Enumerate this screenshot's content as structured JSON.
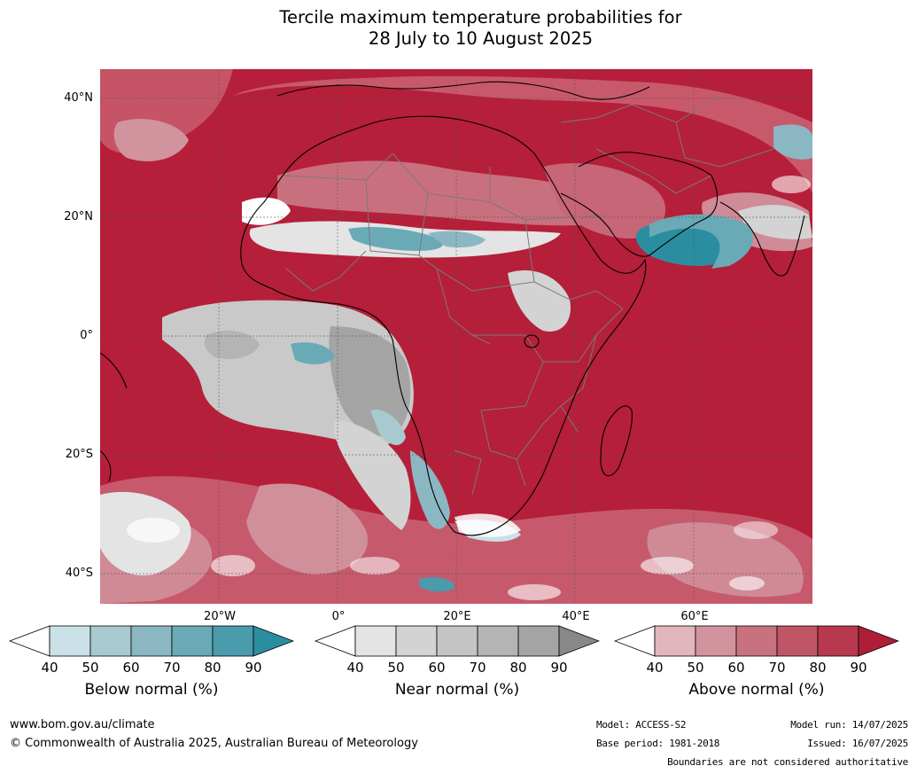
{
  "title_line1": "Tercile maximum temperature probabilities for",
  "title_line2": "28 July to 10 August 2025",
  "map": {
    "lat_labels": [
      "40°N",
      "20°N",
      "0°",
      "20°S",
      "40°S"
    ],
    "lon_labels": [
      "20°W",
      "0°",
      "20°E",
      "40°E",
      "60°E"
    ],
    "colors": {
      "ocean_above": "#b51f39",
      "land_above": "#c0344b",
      "coast": "#000000",
      "borders": "#7a7a7a",
      "grid": "#555555"
    }
  },
  "colorbars": [
    {
      "title": "Below normal (%)",
      "ticks": [
        "40",
        "50",
        "60",
        "70",
        "80",
        "90"
      ],
      "colors": [
        "#ffffff",
        "#c9e1e6",
        "#a9c9d0",
        "#8bb7c3",
        "#6aaab7",
        "#4a9bac",
        "#2a8ea0"
      ]
    },
    {
      "title": "Near normal (%)",
      "ticks": [
        "40",
        "50",
        "60",
        "70",
        "80",
        "90"
      ],
      "colors": [
        "#ffffff",
        "#e4e4e4",
        "#d3d3d3",
        "#c4c4c4",
        "#b4b4b4",
        "#a4a4a4",
        "#888888"
      ]
    },
    {
      "title": "Above normal (%)",
      "ticks": [
        "40",
        "50",
        "60",
        "70",
        "80",
        "90"
      ],
      "colors": [
        "#ffffff",
        "#e1b6bd",
        "#d3939e",
        "#c9727f",
        "#c05565",
        "#b8394e",
        "#ae1e37"
      ]
    }
  ],
  "footer": {
    "website": "www.bom.gov.au/climate",
    "copyright": "© Commonwealth of Australia 2025, Australian Bureau of Meteorology",
    "model": "Model: ACCESS-S2",
    "base_period": "Base period: 1981-2018",
    "model_run": "Model run: 14/07/2025",
    "issued": "Issued: 16/07/2025",
    "disclaimer": "Boundaries are not considered authoritative"
  }
}
